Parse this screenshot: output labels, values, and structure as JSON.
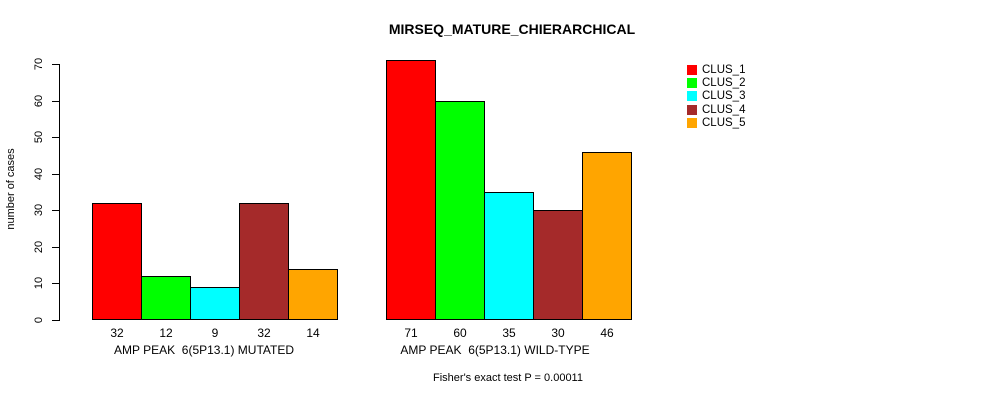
{
  "chart_data": {
    "type": "bar",
    "title": "MIRSEQ_MATURE_CHIERARCHICAL",
    "ylabel": "number of cases",
    "ylim": [
      0,
      70
    ],
    "yticks": [
      0,
      10,
      20,
      30,
      40,
      50,
      60,
      70
    ],
    "grid": false,
    "legend_position": "top-right",
    "categories": [
      "AMP PEAK  6(5P13.1) MUTATED",
      "AMP PEAK  6(5P13.1) WILD-TYPE"
    ],
    "series": [
      {
        "name": "CLUS_1",
        "color": "#FF0000",
        "values": [
          32,
          71
        ]
      },
      {
        "name": "CLUS_2",
        "color": "#00FF00",
        "values": [
          12,
          60
        ]
      },
      {
        "name": "CLUS_3",
        "color": "#00FFFF",
        "values": [
          9,
          35
        ]
      },
      {
        "name": "CLUS_4",
        "color": "#A52A2A",
        "values": [
          32,
          30
        ]
      },
      {
        "name": "CLUS_5",
        "color": "#FFA500",
        "values": [
          14,
          46
        ]
      }
    ],
    "bar_value_labels": true,
    "footer": "Fisher's exact test P = 0.00011"
  },
  "colors": {
    "background": "#FFFFFF",
    "axis": "#000000",
    "text": "#000000"
  }
}
